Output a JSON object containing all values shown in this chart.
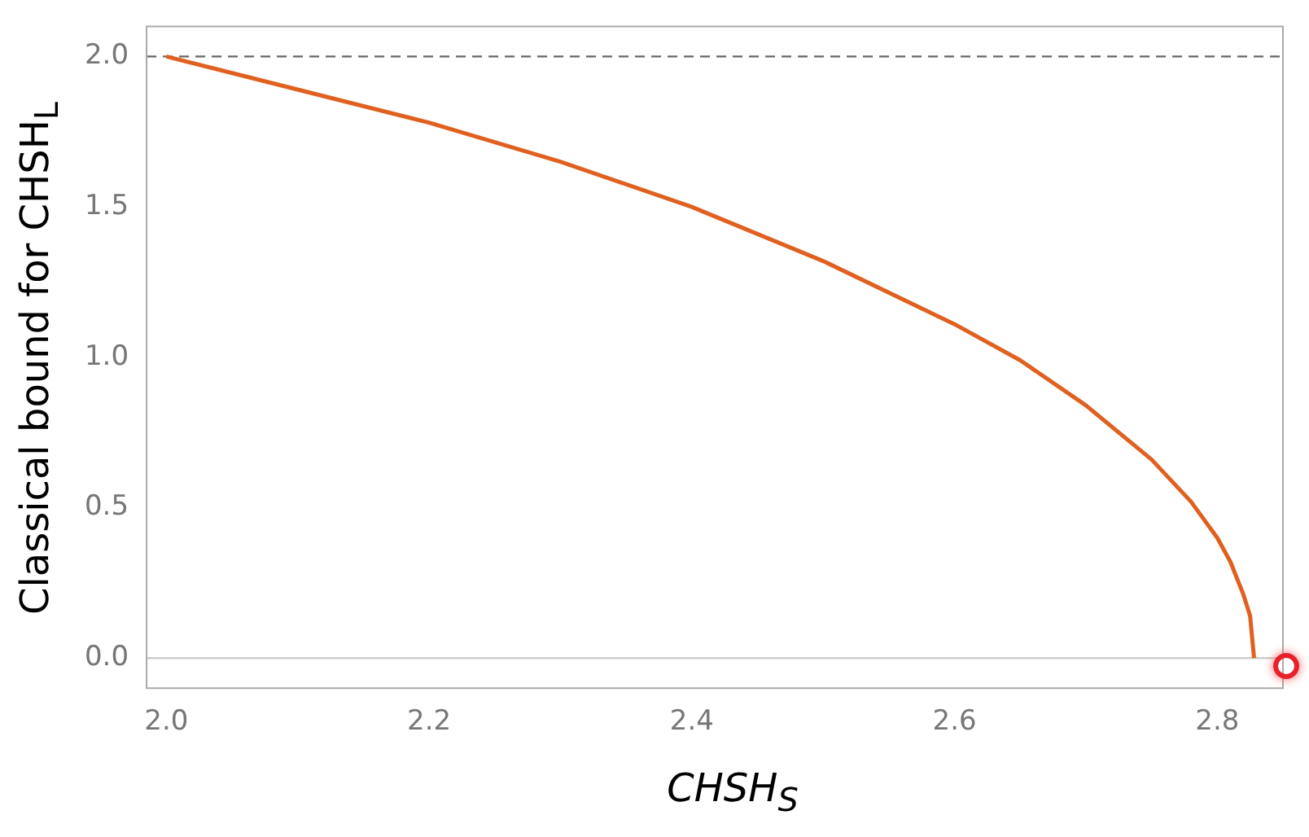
{
  "chart_data": {
    "type": "line",
    "xlabel": "CHSH$_{S}$",
    "ylabel": "Classical bound for CHSH$_{L}$",
    "x": [
      2.0,
      2.1,
      2.2,
      2.3,
      2.4,
      2.5,
      2.6,
      2.65,
      2.7,
      2.75,
      2.78,
      2.8,
      2.81,
      2.82,
      2.825,
      2.828
    ],
    "series": [
      {
        "color": "#e06020",
        "values": [
          2.0,
          1.89,
          1.78,
          1.65,
          1.5,
          1.32,
          1.11,
          0.99,
          0.84,
          0.66,
          0.52,
          0.4,
          0.32,
          0.21,
          0.14,
          0
        ]
      }
    ],
    "xlim": [
      1.985,
      2.85
    ],
    "xticks": [
      {
        "value": 2,
        "label": "2.0"
      },
      2.2,
      2.4,
      2.6,
      2.8
    ],
    "ylim": [
      -0.1,
      2.1
    ],
    "yticks": [
      {
        "value": 0,
        "label": "0.0"
      },
      0.5,
      {
        "value": 1,
        "label": "1.0"
      },
      1.5,
      {
        "value": 2,
        "label": "2.0"
      }
    ],
    "ref_lines": [
      {
        "axis": "y",
        "value": 2,
        "color": "#666666",
        "line_style": "dashed"
      },
      {
        "axis": "y",
        "value": 0,
        "color": "#cccccc",
        "line_style": "solid"
      }
    ],
    "grid": false,
    "legend": false,
    "marker": "none",
    "line_style": "solid"
  }
}
